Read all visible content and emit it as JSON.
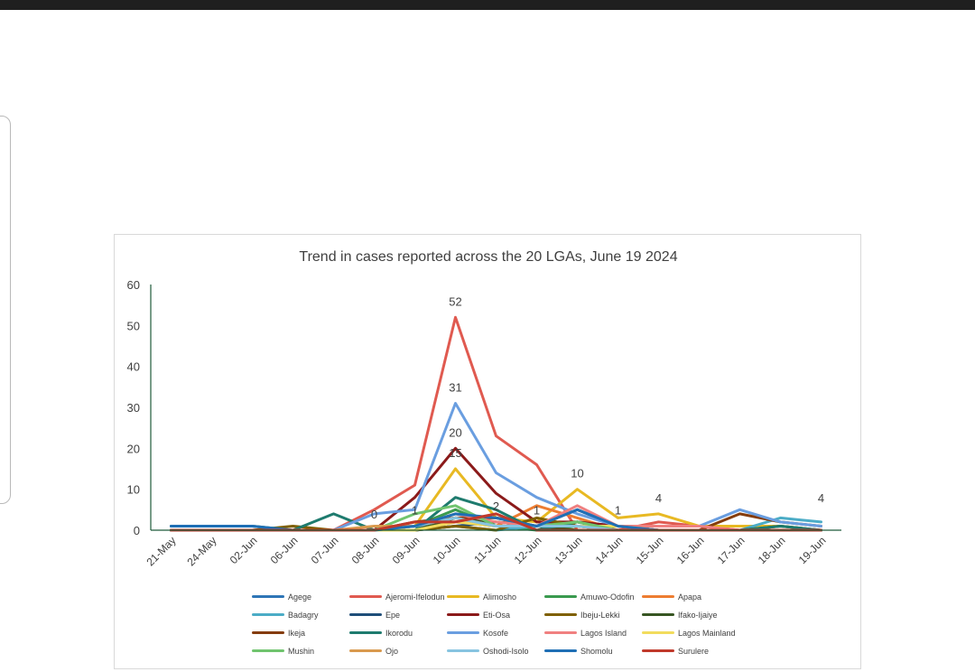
{
  "chart_data": {
    "type": "line",
    "title": "Trend in cases reported across the 20 LGAs, June 19 2024",
    "xlabel": "",
    "ylabel": "",
    "ylim": [
      0,
      60
    ],
    "yticks": [
      0,
      10,
      20,
      30,
      40,
      50,
      60
    ],
    "grid": false,
    "legend_position": "bottom",
    "categories": [
      "21-May",
      "24-May",
      "02-Jun",
      "06-Jun",
      "07-Jun",
      "08-Jun",
      "09-Jun",
      "10-Jun",
      "11-Jun",
      "12-Jun",
      "13-Jun",
      "14-Jun",
      "15-Jun",
      "16-Jun",
      "17-Jun",
      "18-Jun",
      "19-Jun"
    ],
    "series": [
      {
        "name": "Agege",
        "color": "#2e75b6",
        "values": [
          0,
          0,
          0,
          0,
          0,
          0,
          1,
          2,
          1,
          1,
          2,
          1,
          0,
          0,
          0,
          0,
          0
        ]
      },
      {
        "name": "Ajeromi-Ifelodun",
        "color": "#e05a50",
        "values": [
          0,
          0,
          0,
          0,
          0,
          5,
          11,
          52,
          23,
          16,
          0,
          0,
          2,
          1,
          0,
          0,
          0
        ]
      },
      {
        "name": "Alimosho",
        "color": "#e8b923",
        "values": [
          0,
          0,
          0,
          0,
          0,
          0,
          1,
          15,
          3,
          2,
          10,
          3,
          4,
          1,
          1,
          1,
          0
        ]
      },
      {
        "name": "Amuwo-Odofin",
        "color": "#3a9a4f",
        "values": [
          0,
          0,
          0,
          0,
          0,
          0,
          1,
          5,
          1,
          0,
          1,
          0,
          0,
          0,
          0,
          0,
          0
        ]
      },
      {
        "name": "Apapa",
        "color": "#ed7d31",
        "values": [
          0,
          0,
          0,
          0,
          0,
          0,
          0,
          2,
          1,
          6,
          3,
          0,
          0,
          0,
          0,
          0,
          0
        ]
      },
      {
        "name": "Badagry",
        "color": "#4bacc6",
        "values": [
          0,
          0,
          0,
          0,
          0,
          0,
          0,
          1,
          0,
          1,
          1,
          0,
          0,
          0,
          0,
          3,
          2
        ]
      },
      {
        "name": "Epe",
        "color": "#1f4e79",
        "values": [
          0,
          0,
          0,
          0,
          0,
          0,
          0,
          1,
          2,
          1,
          5,
          1,
          0,
          0,
          0,
          0,
          0
        ]
      },
      {
        "name": "Eti-Osa",
        "color": "#8b1a1a",
        "values": [
          0,
          0,
          0,
          0,
          0,
          0,
          8,
          20,
          9,
          2,
          2,
          1,
          0,
          0,
          0,
          0,
          0
        ]
      },
      {
        "name": "Ibeju-Lekki",
        "color": "#7f6000",
        "values": [
          0,
          0,
          0,
          1,
          0,
          0,
          0,
          1,
          0,
          3,
          1,
          0,
          0,
          0,
          0,
          0,
          0
        ]
      },
      {
        "name": "Ifako-Ijaiye",
        "color": "#375623",
        "values": [
          0,
          0,
          0,
          0,
          0,
          0,
          0,
          3,
          2,
          1,
          0,
          0,
          0,
          0,
          0,
          1,
          0
        ]
      },
      {
        "name": "Ikeja",
        "color": "#843c0c",
        "values": [
          0,
          0,
          0,
          0,
          0,
          0,
          2,
          3,
          3,
          1,
          2,
          0,
          0,
          0,
          4,
          2,
          1
        ]
      },
      {
        "name": "Ikorodu",
        "color": "#1e7b6e",
        "values": [
          1,
          1,
          1,
          0,
          4,
          0,
          0,
          8,
          5,
          0,
          2,
          0,
          0,
          0,
          0,
          1,
          0
        ]
      },
      {
        "name": "Kosofe",
        "color": "#6a9ee0",
        "values": [
          0,
          0,
          0,
          0,
          0,
          4,
          5,
          31,
          14,
          8,
          4,
          1,
          1,
          1,
          5,
          2,
          1
        ]
      },
      {
        "name": "Lagos Island",
        "color": "#f08080",
        "values": [
          0,
          0,
          0,
          0,
          0,
          0,
          1,
          4,
          2,
          1,
          6,
          1,
          1,
          1,
          0,
          0,
          0
        ]
      },
      {
        "name": "Lagos Mainland",
        "color": "#f2dc5d",
        "values": [
          0,
          0,
          0,
          0,
          0,
          0,
          0,
          2,
          1,
          1,
          1,
          1,
          0,
          0,
          0,
          0,
          0
        ]
      },
      {
        "name": "Mushin",
        "color": "#70c46e",
        "values": [
          0,
          0,
          0,
          0,
          0,
          0,
          4,
          6,
          1,
          1,
          2,
          0,
          0,
          0,
          0,
          0,
          0
        ]
      },
      {
        "name": "Ojo",
        "color": "#d99a4e",
        "values": [
          0,
          0,
          0,
          0,
          0,
          1,
          1,
          3,
          1,
          1,
          1,
          0,
          0,
          0,
          0,
          0,
          0
        ]
      },
      {
        "name": "Oshodi-Isolo",
        "color": "#87c4e0",
        "values": [
          0,
          0,
          0,
          0,
          0,
          0,
          1,
          3,
          1,
          1,
          1,
          0,
          0,
          0,
          0,
          0,
          0
        ]
      },
      {
        "name": "Shomolu",
        "color": "#1f6fb5",
        "values": [
          1,
          1,
          1,
          0,
          0,
          0,
          1,
          4,
          3,
          1,
          5,
          1,
          0,
          0,
          0,
          0,
          0
        ]
      },
      {
        "name": "Surulere",
        "color": "#c0392b",
        "values": [
          0,
          0,
          0,
          0,
          0,
          0,
          2,
          2,
          4,
          0,
          0,
          0,
          0,
          0,
          0,
          0,
          0
        ]
      }
    ],
    "annotations": [
      {
        "text": "52",
        "category": "10-Jun",
        "value": 52
      },
      {
        "text": "31",
        "category": "10-Jun",
        "value": 31
      },
      {
        "text": "20",
        "category": "10-Jun",
        "value": 20
      },
      {
        "text": "15",
        "category": "10-Jun",
        "value": 15
      },
      {
        "text": "0",
        "category": "08-Jun",
        "value": 0
      },
      {
        "text": "1",
        "category": "09-Jun",
        "value": 1
      },
      {
        "text": "2",
        "category": "11-Jun",
        "value": 2
      },
      {
        "text": "1",
        "category": "12-Jun",
        "value": 1
      },
      {
        "text": "10",
        "category": "13-Jun",
        "value": 10
      },
      {
        "text": "1",
        "category": "14-Jun",
        "value": 1
      },
      {
        "text": "4",
        "category": "15-Jun",
        "value": 4
      },
      {
        "text": "4",
        "category": "19-Jun",
        "value": 4
      }
    ]
  }
}
